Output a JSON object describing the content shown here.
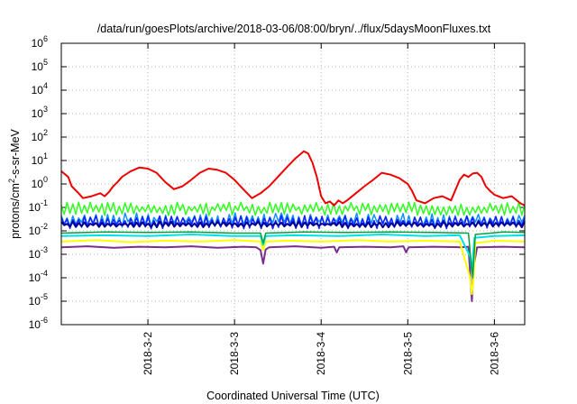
{
  "chart_data": {
    "type": "line",
    "title": "/data/run/goesPlots/archive/2018-03-06/08:00/bryn/../flux/5daysMoonFluxes.txt",
    "xlabel": "Coordinated Universal Time (UTC)",
    "ylabel_base": "protons/cm",
    "ylabel_sup": "2",
    "ylabel_rest": "-s-sr-MeV",
    "y_scale": "log",
    "ylim": [
      1e-06,
      1000000.0
    ],
    "xlim": [
      0,
      5.35
    ],
    "grid": true,
    "x_ticks": [
      {
        "value": 1,
        "label": "2018-3-2"
      },
      {
        "value": 2,
        "label": "2018-3-3"
      },
      {
        "value": 3,
        "label": "2018-3-4"
      },
      {
        "value": 4,
        "label": "2018-3-5"
      },
      {
        "value": 5,
        "label": "2018-3-6"
      }
    ],
    "y_ticks": [
      {
        "value": 1000000.0,
        "base": "10",
        "exp": "6"
      },
      {
        "value": 100000.0,
        "base": "10",
        "exp": "5"
      },
      {
        "value": 10000.0,
        "base": "10",
        "exp": "4"
      },
      {
        "value": 1000.0,
        "base": "10",
        "exp": "3"
      },
      {
        "value": 100.0,
        "base": "10",
        "exp": "2"
      },
      {
        "value": 10.0,
        "base": "10",
        "exp": "1"
      },
      {
        "value": 1.0,
        "base": "10",
        "exp": "0"
      },
      {
        "value": 0.1,
        "base": "10",
        "exp": "-1"
      },
      {
        "value": 0.01,
        "base": "10",
        "exp": "-2"
      },
      {
        "value": 0.001,
        "base": "10",
        "exp": "-3"
      },
      {
        "value": 0.0001,
        "base": "10",
        "exp": "-4"
      },
      {
        "value": 1e-05,
        "base": "10",
        "exp": "-5"
      },
      {
        "value": 1e-06,
        "base": "10",
        "exp": "-6"
      }
    ],
    "series": [
      {
        "color": "#7b2d8e",
        "width": 2,
        "x": [
          0,
          0.3,
          0.6,
          0.9,
          1.2,
          1.5,
          1.8,
          2.1,
          2.25,
          2.3,
          2.33,
          2.36,
          2.4,
          2.7,
          3.0,
          3.15,
          3.18,
          3.21,
          3.5,
          3.8,
          3.95,
          3.98,
          4.01,
          4.3,
          4.6,
          4.7,
          4.72,
          4.74,
          4.76,
          4.8,
          5.1,
          5.35
        ],
        "y": [
          0.002,
          0.0022,
          0.0019,
          0.0021,
          0.002,
          0.0022,
          0.0019,
          0.0021,
          0.002,
          0.0015,
          0.0004,
          0.0016,
          0.002,
          0.0022,
          0.0019,
          0.0021,
          0.0012,
          0.002,
          0.0021,
          0.002,
          0.0022,
          0.0012,
          0.002,
          0.0021,
          0.002,
          0.0021,
          0.00015,
          1e-05,
          0.0003,
          0.002,
          0.0021,
          0.002
        ]
      },
      {
        "color": "#ffff00",
        "width": 2,
        "x": [
          0,
          0.4,
          0.8,
          1.2,
          1.6,
          2.0,
          2.3,
          2.33,
          2.36,
          2.6,
          3.0,
          3.4,
          3.8,
          4.2,
          4.6,
          4.72,
          4.74,
          4.76,
          4.78,
          5.0,
          5.35
        ],
        "y": [
          0.0035,
          0.004,
          0.0033,
          0.0038,
          0.0035,
          0.004,
          0.0035,
          0.0015,
          0.0035,
          0.0038,
          0.0035,
          0.004,
          0.0035,
          0.0038,
          0.0035,
          0.0001,
          2e-05,
          0.0001,
          0.003,
          0.0038,
          0.0035
        ]
      },
      {
        "color": "#00e0e0",
        "width": 2,
        "x": [
          0,
          0.5,
          1.0,
          1.5,
          2.0,
          2.3,
          2.33,
          2.36,
          2.7,
          3.2,
          3.7,
          4.2,
          4.6,
          4.72,
          4.74,
          4.77,
          5.0,
          5.35
        ],
        "y": [
          0.006,
          0.0065,
          0.006,
          0.007,
          0.006,
          0.006,
          0.0025,
          0.006,
          0.0065,
          0.006,
          0.007,
          0.006,
          0.0065,
          0.0008,
          0.0002,
          0.005,
          0.006,
          0.0065
        ]
      },
      {
        "color": "#00a040",
        "width": 1.5,
        "x": [
          0,
          0.5,
          1.0,
          1.5,
          2.0,
          2.3,
          2.33,
          2.36,
          2.8,
          3.3,
          3.8,
          4.3,
          4.7,
          4.73,
          4.75,
          4.78,
          5.1,
          5.35
        ],
        "y": [
          0.008,
          0.009,
          0.0085,
          0.009,
          0.008,
          0.008,
          0.003,
          0.008,
          0.009,
          0.0085,
          0.009,
          0.0085,
          0.008,
          0.0005,
          0.0001,
          0.007,
          0.009,
          0.0085
        ]
      }
    ],
    "bands": [
      {
        "color": "#30ff20",
        "width": 1.5,
        "lo": 0.045,
        "hi": 0.17,
        "seed": 3
      },
      {
        "color": "#1090ff",
        "width": 1.5,
        "lo": 0.014,
        "hi": 0.06,
        "seed": 7
      },
      {
        "color": "#1020ff",
        "width": 1.5,
        "lo": 0.012,
        "hi": 0.045,
        "seed": 11
      },
      {
        "color": "#000090",
        "width": 2,
        "lo": 0.014,
        "hi": 0.025,
        "seed": 17
      }
    ],
    "red_series": {
      "color": "#ee0000",
      "width": 2,
      "x": [
        0,
        0.08,
        0.12,
        0.2,
        0.25,
        0.35,
        0.45,
        0.5,
        0.55,
        0.6,
        0.65,
        0.7,
        0.8,
        0.9,
        1.0,
        1.1,
        1.2,
        1.3,
        1.4,
        1.5,
        1.6,
        1.7,
        1.8,
        1.9,
        2.0,
        2.1,
        2.2,
        2.3,
        2.4,
        2.5,
        2.6,
        2.7,
        2.8,
        2.85,
        2.9,
        2.95,
        3.0,
        3.05,
        3.1,
        3.15,
        3.2,
        3.25,
        3.3,
        3.4,
        3.5,
        3.6,
        3.7,
        3.8,
        3.9,
        4.0,
        4.05,
        4.1,
        4.2,
        4.3,
        4.4,
        4.5,
        4.6,
        4.65,
        4.7,
        4.75,
        4.8,
        4.85,
        4.9,
        4.95,
        5.0,
        5.1,
        5.2,
        5.3,
        5.35
      ],
      "y": [
        3.5,
        2.0,
        0.8,
        0.4,
        0.25,
        0.3,
        0.4,
        0.3,
        0.45,
        0.8,
        1.2,
        2.0,
        3.5,
        5.0,
        4.5,
        3.0,
        1.2,
        0.6,
        0.8,
        1.5,
        3.0,
        4.5,
        4.0,
        3.0,
        1.5,
        0.6,
        0.25,
        0.4,
        0.8,
        2.0,
        5.0,
        12.0,
        25.0,
        20.0,
        8.0,
        2.0,
        0.3,
        0.15,
        0.18,
        0.12,
        0.2,
        0.15,
        0.2,
        0.4,
        0.8,
        1.5,
        3.0,
        2.5,
        1.8,
        1.0,
        0.5,
        0.2,
        0.15,
        0.25,
        0.3,
        0.2,
        1.5,
        2.5,
        2.0,
        2.8,
        3.0,
        2.0,
        0.8,
        0.5,
        0.35,
        0.25,
        0.3,
        0.15,
        0.12
      ]
    }
  }
}
